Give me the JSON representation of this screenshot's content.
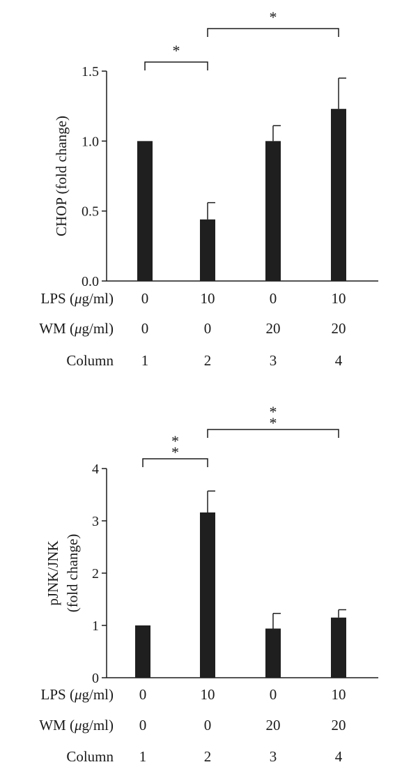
{
  "chart_data": [
    {
      "type": "bar",
      "categories": [
        "1",
        "2",
        "3",
        "4"
      ],
      "values": [
        1.0,
        0.44,
        1.0,
        1.23
      ],
      "errors": [
        0,
        0.12,
        0.11,
        0.22
      ],
      "title": "",
      "xlabel": "",
      "ylabel": "CHOP (fold change)",
      "ylim": [
        0,
        1.5
      ],
      "yticks": [
        "0.0",
        "0.5",
        "1.0",
        "1.5"
      ],
      "grid": false,
      "bar_color": "#1f1f1f",
      "condition_rows": [
        {
          "label": "LPS (μg/ml)",
          "values": [
            "0",
            "10",
            "0",
            "10"
          ]
        },
        {
          "label": "WM (μg/ml)",
          "values": [
            "0",
            "0",
            "20",
            "20"
          ]
        },
        {
          "label": "Column",
          "values": [
            "1",
            "2",
            "3",
            "4"
          ]
        }
      ],
      "significance": [
        {
          "from": "1",
          "to": "2",
          "label": "*"
        },
        {
          "from": "2",
          "to": "4",
          "label": "*"
        }
      ]
    },
    {
      "type": "bar",
      "categories": [
        "1",
        "2",
        "3",
        "4"
      ],
      "values": [
        1.0,
        3.16,
        0.94,
        1.15
      ],
      "errors": [
        0,
        0.41,
        0.29,
        0.15
      ],
      "title": "",
      "xlabel": "",
      "ylabel": "pJNK/JNK (fold change)",
      "ylabel_lines": [
        "pJNK/JNK",
        "(fold change)"
      ],
      "ylim": [
        0,
        4
      ],
      "yticks": [
        "0",
        "1",
        "2",
        "3",
        "4"
      ],
      "grid": false,
      "bar_color": "#1f1f1f",
      "condition_rows": [
        {
          "label": "LPS (μg/ml)",
          "values": [
            "0",
            "10",
            "0",
            "10"
          ]
        },
        {
          "label": "WM (μg/ml)",
          "values": [
            "0",
            "0",
            "20",
            "20"
          ]
        },
        {
          "label": "Column",
          "values": [
            "1",
            "2",
            "3",
            "4"
          ]
        }
      ],
      "significance": [
        {
          "from": "1",
          "to": "2",
          "label": "**"
        },
        {
          "from": "2",
          "to": "4",
          "label": "**"
        }
      ]
    }
  ]
}
